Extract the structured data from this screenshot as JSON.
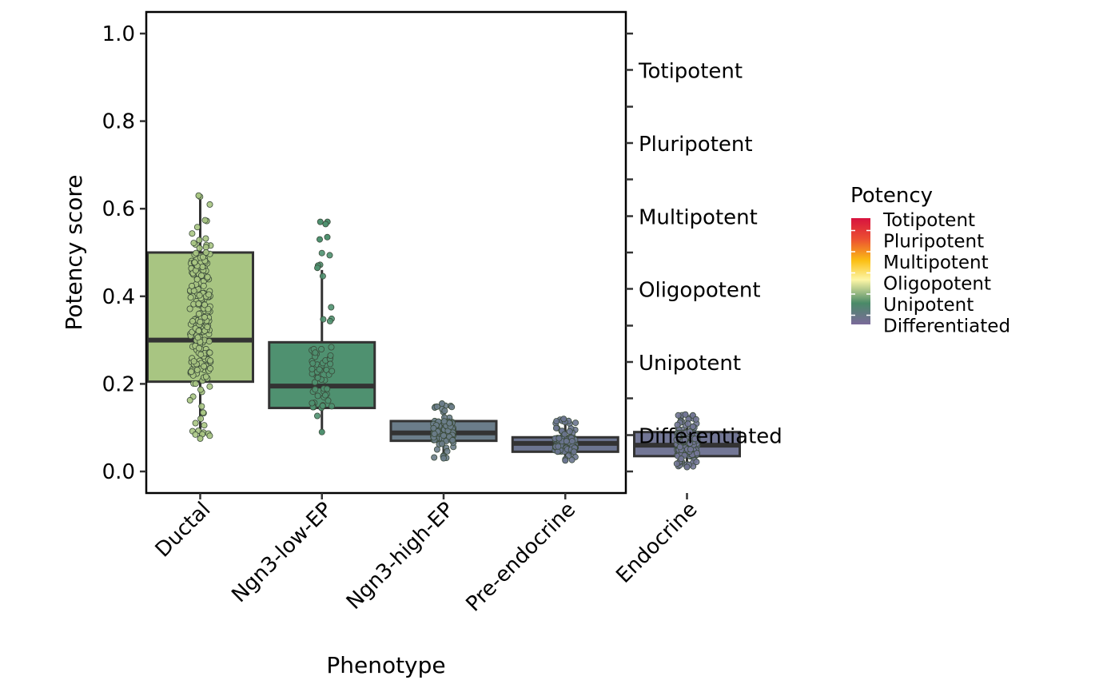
{
  "chart_data": {
    "type": "box",
    "title": "",
    "xlabel": "Phenotype",
    "ylabel": "Potency score",
    "ylim": [
      -0.05,
      1.05
    ],
    "y_ticks": [
      0.0,
      0.2,
      0.4,
      0.6,
      0.8,
      1.0
    ],
    "y_tick_labels": [
      "0.0",
      "0.2",
      "0.4",
      "0.6",
      "0.8",
      "1.0"
    ],
    "categories": [
      "Ductal",
      "Ngn3-low-EP",
      "Ngn3-high-EP",
      "Pre-endocrine",
      "Endocrine"
    ],
    "boxes": [
      {
        "name": "Ductal",
        "q1": 0.205,
        "median": 0.3,
        "q3": 0.5,
        "whisker_low": 0.075,
        "whisker_high": 0.63,
        "outliers": [],
        "fill": "#a8c582",
        "point_range": [
          0.075,
          0.63
        ],
        "n_points": 220
      },
      {
        "name": "Ngn3-low-EP",
        "q1": 0.145,
        "median": 0.195,
        "q3": 0.295,
        "whisker_low": 0.095,
        "whisker_high": 0.46,
        "outliers": [
          0.57,
          0.565,
          0.535,
          0.53,
          0.47,
          0.465
        ],
        "fill": "#4f9170",
        "point_range": [
          0.09,
          0.57
        ],
        "n_points": 60
      },
      {
        "name": "Ngn3-high-EP",
        "q1": 0.07,
        "median": 0.088,
        "q3": 0.115,
        "whisker_low": 0.035,
        "whisker_high": 0.155,
        "outliers": [],
        "fill": "#6b7d8a",
        "point_range": [
          0.03,
          0.155
        ],
        "n_points": 140
      },
      {
        "name": "Pre-endocrine",
        "q1": 0.045,
        "median": 0.064,
        "q3": 0.078,
        "whisker_low": 0.025,
        "whisker_high": 0.12,
        "outliers": [],
        "fill": "#6c7590",
        "point_range": [
          0.025,
          0.12
        ],
        "n_points": 140
      },
      {
        "name": "Endocrine",
        "q1": 0.035,
        "median": 0.06,
        "q3": 0.09,
        "whisker_low": 0.01,
        "whisker_high": 0.13,
        "outliers": [],
        "fill": "#737796",
        "point_range": [
          0.01,
          0.13
        ],
        "n_points": 200
      }
    ],
    "secondary_y_axis": {
      "labels": [
        "Totipotent",
        "Pluripotent",
        "Multipotent",
        "Oligopotent",
        "Unipotent",
        "Differentiated"
      ],
      "label_positions": [
        0.917,
        0.75,
        0.583,
        0.417,
        0.25,
        0.083
      ],
      "minor_ticks": [
        1.0,
        0.833,
        0.667,
        0.5,
        0.333,
        0.167,
        0.0
      ]
    },
    "legend": {
      "title": "Potency",
      "placement": "right",
      "type": "colorbar",
      "labels": [
        "Totipotent",
        "Pluripotent",
        "Multipotent",
        "Oligopotent",
        "Unipotent",
        "Differentiated"
      ],
      "colors": [
        "#d7133f",
        "#f26a2a",
        "#fbbf14",
        "#fdf6a6",
        "#4a8a68",
        "#7b6a9a"
      ]
    },
    "grid": false
  }
}
